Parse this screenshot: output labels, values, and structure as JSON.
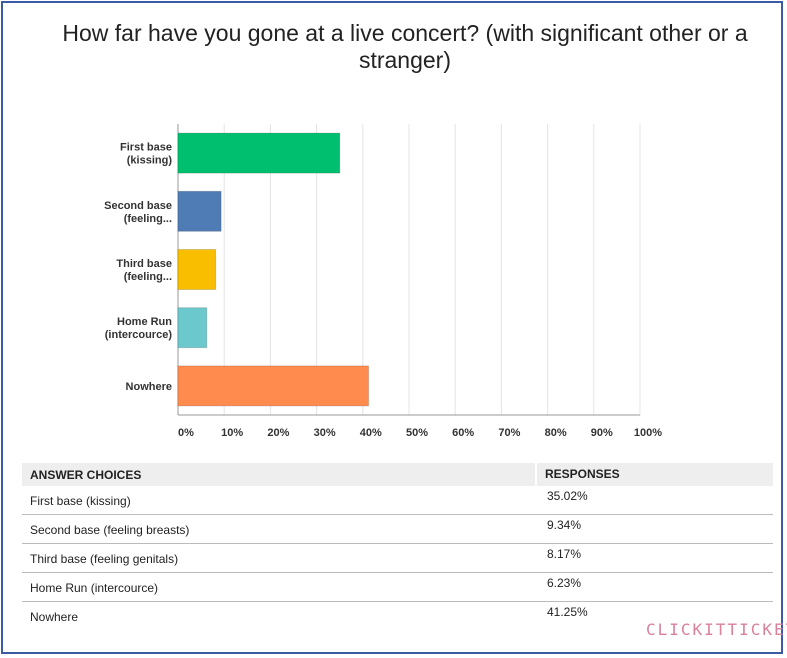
{
  "chart_data": {
    "type": "bar",
    "orientation": "horizontal",
    "title": "How far have you gone at a live concert? (with significant other or a stranger)",
    "categories": [
      "First base\n(kissing)",
      "Second base\n(feeling...",
      "Third base\n(feeling...",
      "Home Run\n(intercource)",
      "Nowhere"
    ],
    "values": [
      35.02,
      9.34,
      8.17,
      6.23,
      41.25
    ],
    "colors": [
      "#00bf6f",
      "#507cb6",
      "#f9be00",
      "#6bc8cd",
      "#ff8b4f"
    ],
    "xlim": [
      0,
      100
    ],
    "xticks": [
      "0%",
      "10%",
      "20%",
      "30%",
      "40%",
      "50%",
      "60%",
      "70%",
      "80%",
      "90%",
      "100%"
    ],
    "grid": true
  },
  "table": {
    "header": [
      "ANSWER CHOICES",
      "RESPONSES"
    ],
    "rows": [
      {
        "choice": "First base (kissing)",
        "response": "35.02%"
      },
      {
        "choice": "Second base (feeling breasts)",
        "response": "9.34%"
      },
      {
        "choice": "Third base (feeling genitals)",
        "response": "8.17%"
      },
      {
        "choice": "Home Run (intercource)",
        "response": "6.23%"
      },
      {
        "choice": "Nowhere",
        "response": "41.25%"
      }
    ]
  },
  "watermark": "CLICKITTICKET"
}
